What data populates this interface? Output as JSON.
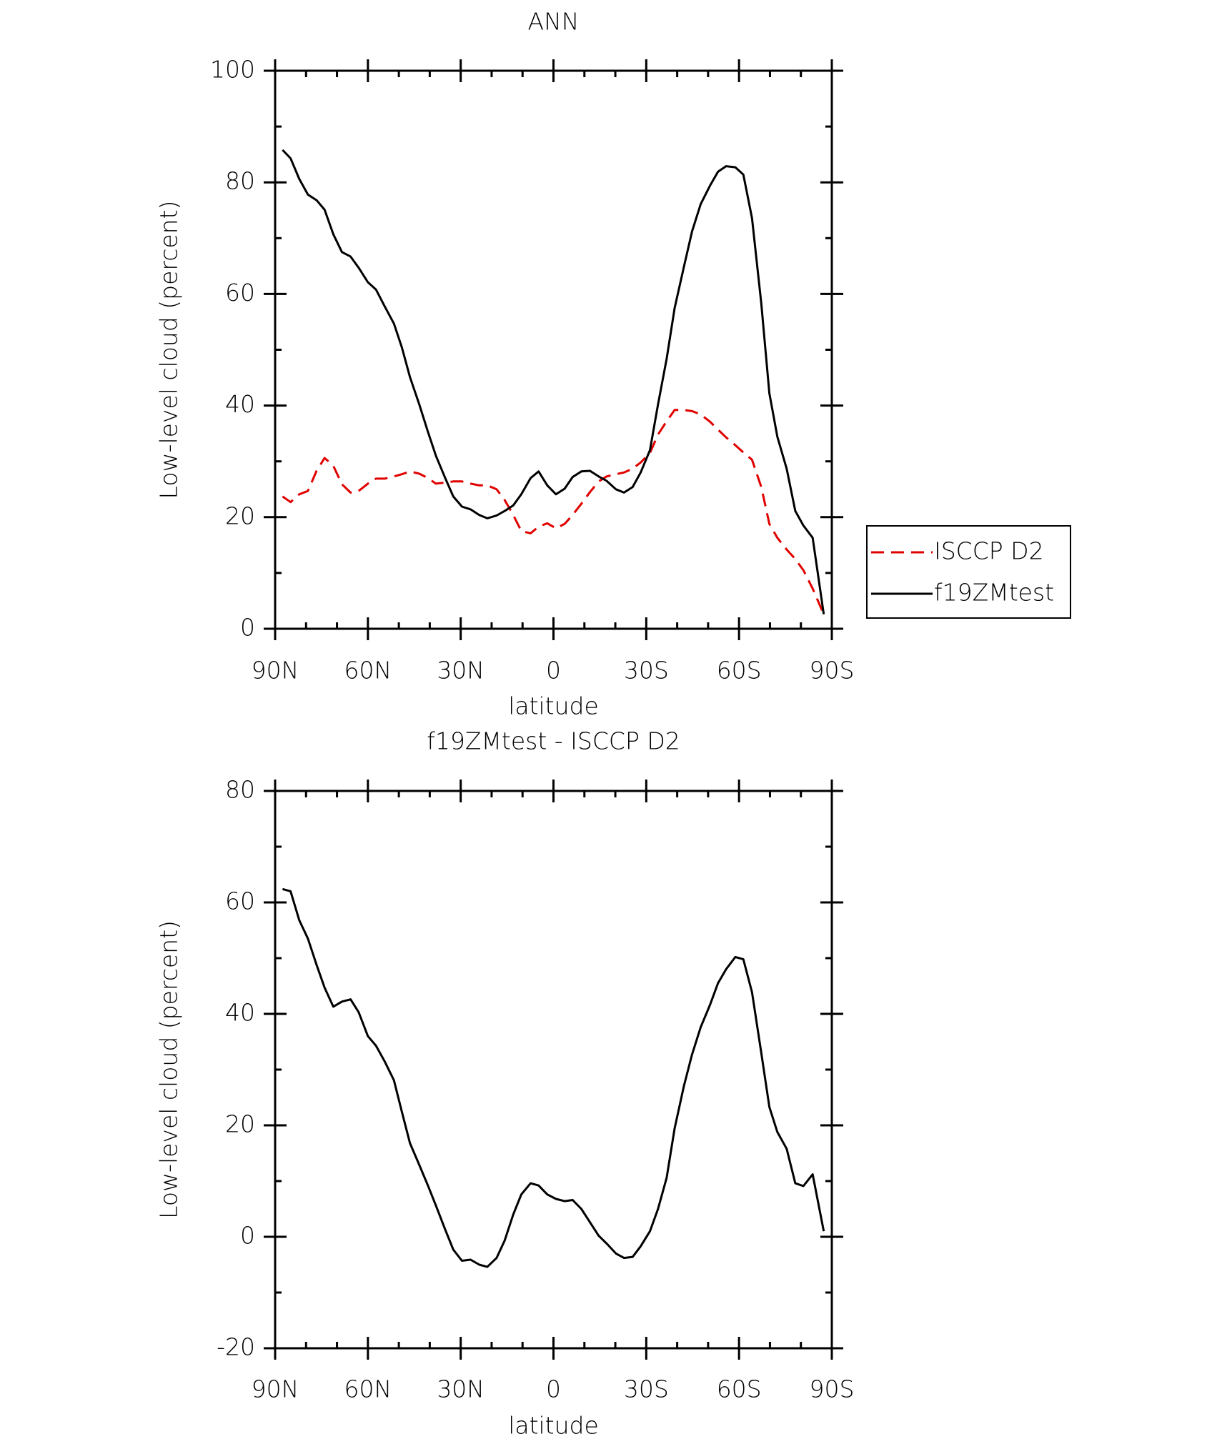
{
  "chart_data": [
    {
      "type": "line",
      "title": "ANN",
      "x_label": "latitude",
      "y_label": "Low-level cloud (percent)",
      "x": [
        87.6,
        85.0,
        82.2,
        79.4,
        76.6,
        74.0,
        71.2,
        68.4,
        65.6,
        63.0,
        60.0,
        57.4,
        54.6,
        51.6,
        49.0,
        46.4,
        43.4,
        40.6,
        38.0,
        35.0,
        32.4,
        29.6,
        26.8,
        24.0,
        21.4,
        18.4,
        15.8,
        13.0,
        10.4,
        7.4,
        4.8,
        2.0,
        -0.8,
        -3.6,
        -6.2,
        -9.0,
        -11.8,
        -14.6,
        -17.2,
        -20.2,
        -22.8,
        -25.6,
        -28.2,
        -31.2,
        -33.8,
        -36.6,
        -39.2,
        -42.2,
        -44.8,
        -47.6,
        -50.6,
        -53.2,
        -55.8,
        -58.8,
        -61.4,
        -64.2,
        -67.2,
        -69.8,
        -72.4,
        -75.4,
        -78.2,
        -80.8,
        -83.8,
        -87.4
      ],
      "series": [
        {
          "name": "ISCCP D2",
          "color": "#e00000",
          "style": "dashed",
          "values": [
            23.7,
            22.7,
            24.1,
            24.7,
            28.3,
            30.6,
            29.2,
            25.9,
            24.4,
            24.7,
            26.0,
            26.9,
            26.9,
            27.3,
            27.7,
            28.2,
            27.8,
            27.0,
            26.0,
            26.2,
            26.4,
            26.4,
            26.0,
            25.7,
            25.7,
            25.0,
            23.1,
            20.4,
            17.5,
            17.1,
            18.3,
            18.9,
            18.0,
            18.8,
            20.4,
            22.4,
            24.5,
            26.4,
            27.3,
            27.7,
            28.0,
            28.7,
            29.8,
            31.5,
            34.8,
            37.2,
            39.2,
            39.2,
            39.0,
            38.4,
            37.1,
            35.7,
            34.3,
            32.9,
            31.6,
            30.3,
            25.4,
            18.8,
            16.3,
            14.2,
            12.5,
            10.5,
            7.2,
            2.6
          ]
        },
        {
          "name": "f19ZMtest",
          "color": "#000000",
          "style": "solid",
          "values": [
            85.8,
            84.3,
            80.6,
            77.8,
            76.8,
            75.1,
            70.7,
            67.5,
            66.7,
            64.7,
            62.1,
            60.8,
            57.8,
            54.7,
            50.4,
            45.1,
            40.2,
            35.3,
            31.0,
            27.0,
            23.7,
            21.9,
            21.4,
            20.4,
            19.8,
            20.3,
            21.1,
            22.1,
            24.1,
            27.0,
            28.2,
            25.7,
            24.1,
            25.1,
            27.2,
            28.2,
            28.3,
            27.3,
            26.5,
            25.0,
            24.4,
            25.4,
            28.0,
            32.0,
            40.2,
            48.4,
            57.5,
            64.9,
            71.2,
            76.1,
            79.4,
            81.9,
            82.9,
            82.7,
            81.4,
            73.6,
            58.3,
            42.2,
            34.4,
            28.7,
            21.1,
            18.5,
            16.3,
            2.6
          ]
        }
      ],
      "xlim": [
        90,
        -90
      ],
      "xticks": [
        {
          "value": 90,
          "label": "90N"
        },
        {
          "value": 60,
          "label": "60N"
        },
        {
          "value": 30,
          "label": "30N"
        },
        0,
        {
          "value": -30,
          "label": "30S"
        },
        {
          "value": -60,
          "label": "60S"
        },
        {
          "value": -90,
          "label": "90S"
        }
      ],
      "ylim": [
        0,
        100
      ],
      "yticks": [
        0,
        20,
        40,
        60,
        80,
        100
      ],
      "legend": "right"
    },
    {
      "type": "line",
      "title": "f19ZMtest - ISCCP D2",
      "x_label": "latitude",
      "y_label": "Low-level cloud (percent)",
      "x": [
        87.6,
        85.0,
        82.2,
        79.4,
        76.6,
        74.0,
        71.2,
        68.4,
        65.6,
        63.0,
        60.0,
        57.4,
        54.6,
        51.6,
        49.0,
        46.4,
        43.4,
        40.6,
        38.0,
        35.0,
        32.4,
        29.6,
        26.8,
        24.0,
        21.4,
        18.4,
        15.8,
        13.0,
        10.4,
        7.4,
        4.8,
        2.0,
        -0.8,
        -3.6,
        -6.2,
        -9.0,
        -11.8,
        -14.6,
        -17.2,
        -20.2,
        -22.8,
        -25.6,
        -28.2,
        -31.2,
        -33.8,
        -36.6,
        -39.2,
        -42.2,
        -44.8,
        -47.6,
        -50.6,
        -53.2,
        -55.8,
        -58.8,
        -61.4,
        -64.2,
        -67.2,
        -69.8,
        -72.4,
        -75.4,
        -78.2,
        -80.8,
        -83.8,
        -87.4
      ],
      "color": "#000000",
      "values": [
        62.4,
        62.0,
        56.8,
        53.5,
        48.8,
        44.7,
        41.3,
        42.2,
        42.6,
        40.3,
        36.0,
        34.3,
        31.5,
        28.1,
        22.4,
        16.8,
        12.9,
        9.2,
        5.6,
        1.3,
        -2.3,
        -4.3,
        -4.1,
        -5.0,
        -5.4,
        -3.8,
        -0.7,
        4.0,
        7.6,
        9.6,
        9.2,
        7.6,
        6.8,
        6.4,
        6.6,
        5.0,
        2.6,
        0.2,
        -1.2,
        -3.0,
        -3.8,
        -3.6,
        -1.7,
        1.0,
        5.0,
        10.6,
        19.5,
        27.1,
        32.7,
        37.6,
        41.6,
        45.5,
        48.0,
        50.2,
        49.8,
        43.9,
        33.0,
        23.3,
        18.8,
        15.8,
        9.6,
        9.1,
        11.2,
        1.0
      ],
      "xlim": [
        90,
        -90
      ],
      "xticks": [
        {
          "value": 90,
          "label": "90N"
        },
        {
          "value": 60,
          "label": "60N"
        },
        {
          "value": 30,
          "label": "30N"
        },
        0,
        {
          "value": -30,
          "label": "30S"
        },
        {
          "value": -60,
          "label": "60S"
        },
        {
          "value": -90,
          "label": "90S"
        }
      ],
      "ylim": [
        -20,
        80
      ],
      "yticks": [
        -20,
        0,
        20,
        40,
        60,
        80
      ]
    }
  ]
}
